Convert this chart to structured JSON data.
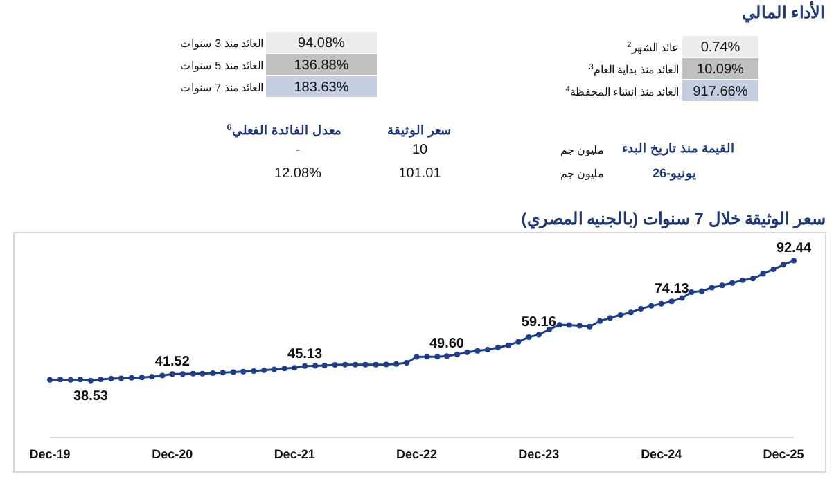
{
  "chart_data": [
    {
      "type": "other",
      "title": "الأداء المالي",
      "annotations": [
        "عائد الشهر$^{2}$",
        "0.74%",
        "العائد منذ بداية العام$^{3}$",
        "10.09%",
        "العائد منذ انشاء المحفظة$^{4}$",
        "917.66%",
        "العائد منذ 3 سنوات",
        "94.08%",
        "العائد منذ 5 سنوات",
        "136.88%",
        "العائد منذ 7 سنوات",
        "183.63%",
        "معدل الفائدة الفعلي$^{6}$",
        "سعر الوثيقة",
        "القيمة منذ تاريخ البدء",
        "-",
        "10",
        "مليون جم",
        "يونيو-26",
        "12.08%",
        "101.01",
        "مليون جم"
      ]
    },
    {
      "type": "line",
      "title": "سعر الوثيقة خلال 7 سنوات (بالجنيه المصري)",
      "color": "#1f3d8a",
      "marker": "circle",
      "tick_labels": "x",
      "xlim": [
        "2019-12",
        "2026-01"
      ],
      "ylim": [
        13,
        105
      ],
      "xticks": [
        {
          "value": "2019-12",
          "label": "Dec-19"
        },
        {
          "value": "2020-12",
          "label": "Dec-20"
        },
        {
          "value": "2021-12",
          "label": "Dec-21"
        },
        {
          "value": "2022-12",
          "label": "Dec-22"
        },
        {
          "value": "2023-12",
          "label": "Dec-23"
        },
        {
          "value": "2024-12",
          "label": "Dec-24"
        },
        {
          "value": "2025-12",
          "label": "Dec-25"
        }
      ],
      "x": [
        "2019-12",
        "2020-01",
        "2020-02",
        "2020-03",
        "2020-04",
        "2020-05",
        "2020-06",
        "2020-07",
        "2020-08",
        "2020-09",
        "2020-10",
        "2020-11",
        "2020-12",
        "2021-01",
        "2021-02",
        "2021-03",
        "2021-04",
        "2021-05",
        "2021-06",
        "2021-07",
        "2021-08",
        "2021-09",
        "2021-10",
        "2021-11",
        "2021-12",
        "2022-01",
        "2022-02",
        "2022-03",
        "2022-04",
        "2022-05",
        "2022-06",
        "2022-07",
        "2022-08",
        "2022-09",
        "2022-10",
        "2022-11",
        "2022-12",
        "2023-01",
        "2023-02",
        "2023-03",
        "2023-04",
        "2023-05",
        "2023-06",
        "2023-07",
        "2023-08",
        "2023-09",
        "2023-10",
        "2023-11",
        "2023-12",
        "2024-01",
        "2024-02",
        "2024-03",
        "2024-04",
        "2024-05",
        "2024-06",
        "2024-07",
        "2024-08",
        "2024-09",
        "2024-10",
        "2024-11",
        "2024-12",
        "2025-01",
        "2025-02",
        "2025-03",
        "2025-04",
        "2025-05",
        "2025-06",
        "2025-07",
        "2025-08",
        "2025-09",
        "2025-10",
        "2025-11",
        "2025-12",
        "2026-01"
      ],
      "values": [
        38.9,
        39.0,
        38.9,
        39.0,
        38.53,
        39.1,
        39.4,
        39.6,
        39.8,
        40.0,
        40.3,
        40.8,
        41.52,
        41.5,
        41.7,
        41.7,
        41.9,
        42.1,
        42.4,
        42.6,
        42.8,
        43.2,
        43.6,
        44.0,
        44.3,
        45.13,
        45.2,
        45.3,
        45.6,
        45.7,
        45.7,
        45.7,
        45.7,
        45.8,
        46.0,
        46.6,
        49.2,
        49.3,
        49.3,
        49.6,
        50.3,
        51.3,
        51.9,
        52.5,
        53.4,
        54.4,
        56.0,
        58.1,
        59.16,
        61.5,
        63.6,
        63.5,
        63.2,
        62.8,
        65.3,
        66.7,
        68.0,
        69.2,
        70.8,
        72.1,
        73.1,
        74.13,
        75.6,
        78.3,
        78.7,
        80.3,
        81.3,
        82.4,
        83.6,
        84.4,
        86.5,
        88.5,
        90.6,
        92.44
      ],
      "value_labels": [
        null,
        null,
        null,
        null,
        "38.53",
        null,
        null,
        null,
        null,
        null,
        null,
        null,
        "41.52",
        null,
        null,
        null,
        null,
        null,
        null,
        null,
        null,
        null,
        null,
        null,
        null,
        "45.13",
        null,
        null,
        null,
        null,
        null,
        null,
        null,
        null,
        null,
        null,
        null,
        null,
        null,
        "49.60",
        null,
        null,
        null,
        null,
        null,
        null,
        null,
        null,
        "59.16",
        null,
        null,
        null,
        null,
        null,
        null,
        null,
        null,
        null,
        null,
        null,
        null,
        "74.13",
        null,
        null,
        null,
        null,
        null,
        null,
        null,
        null,
        null,
        null,
        null,
        "92.44"
      ]
    }
  ]
}
